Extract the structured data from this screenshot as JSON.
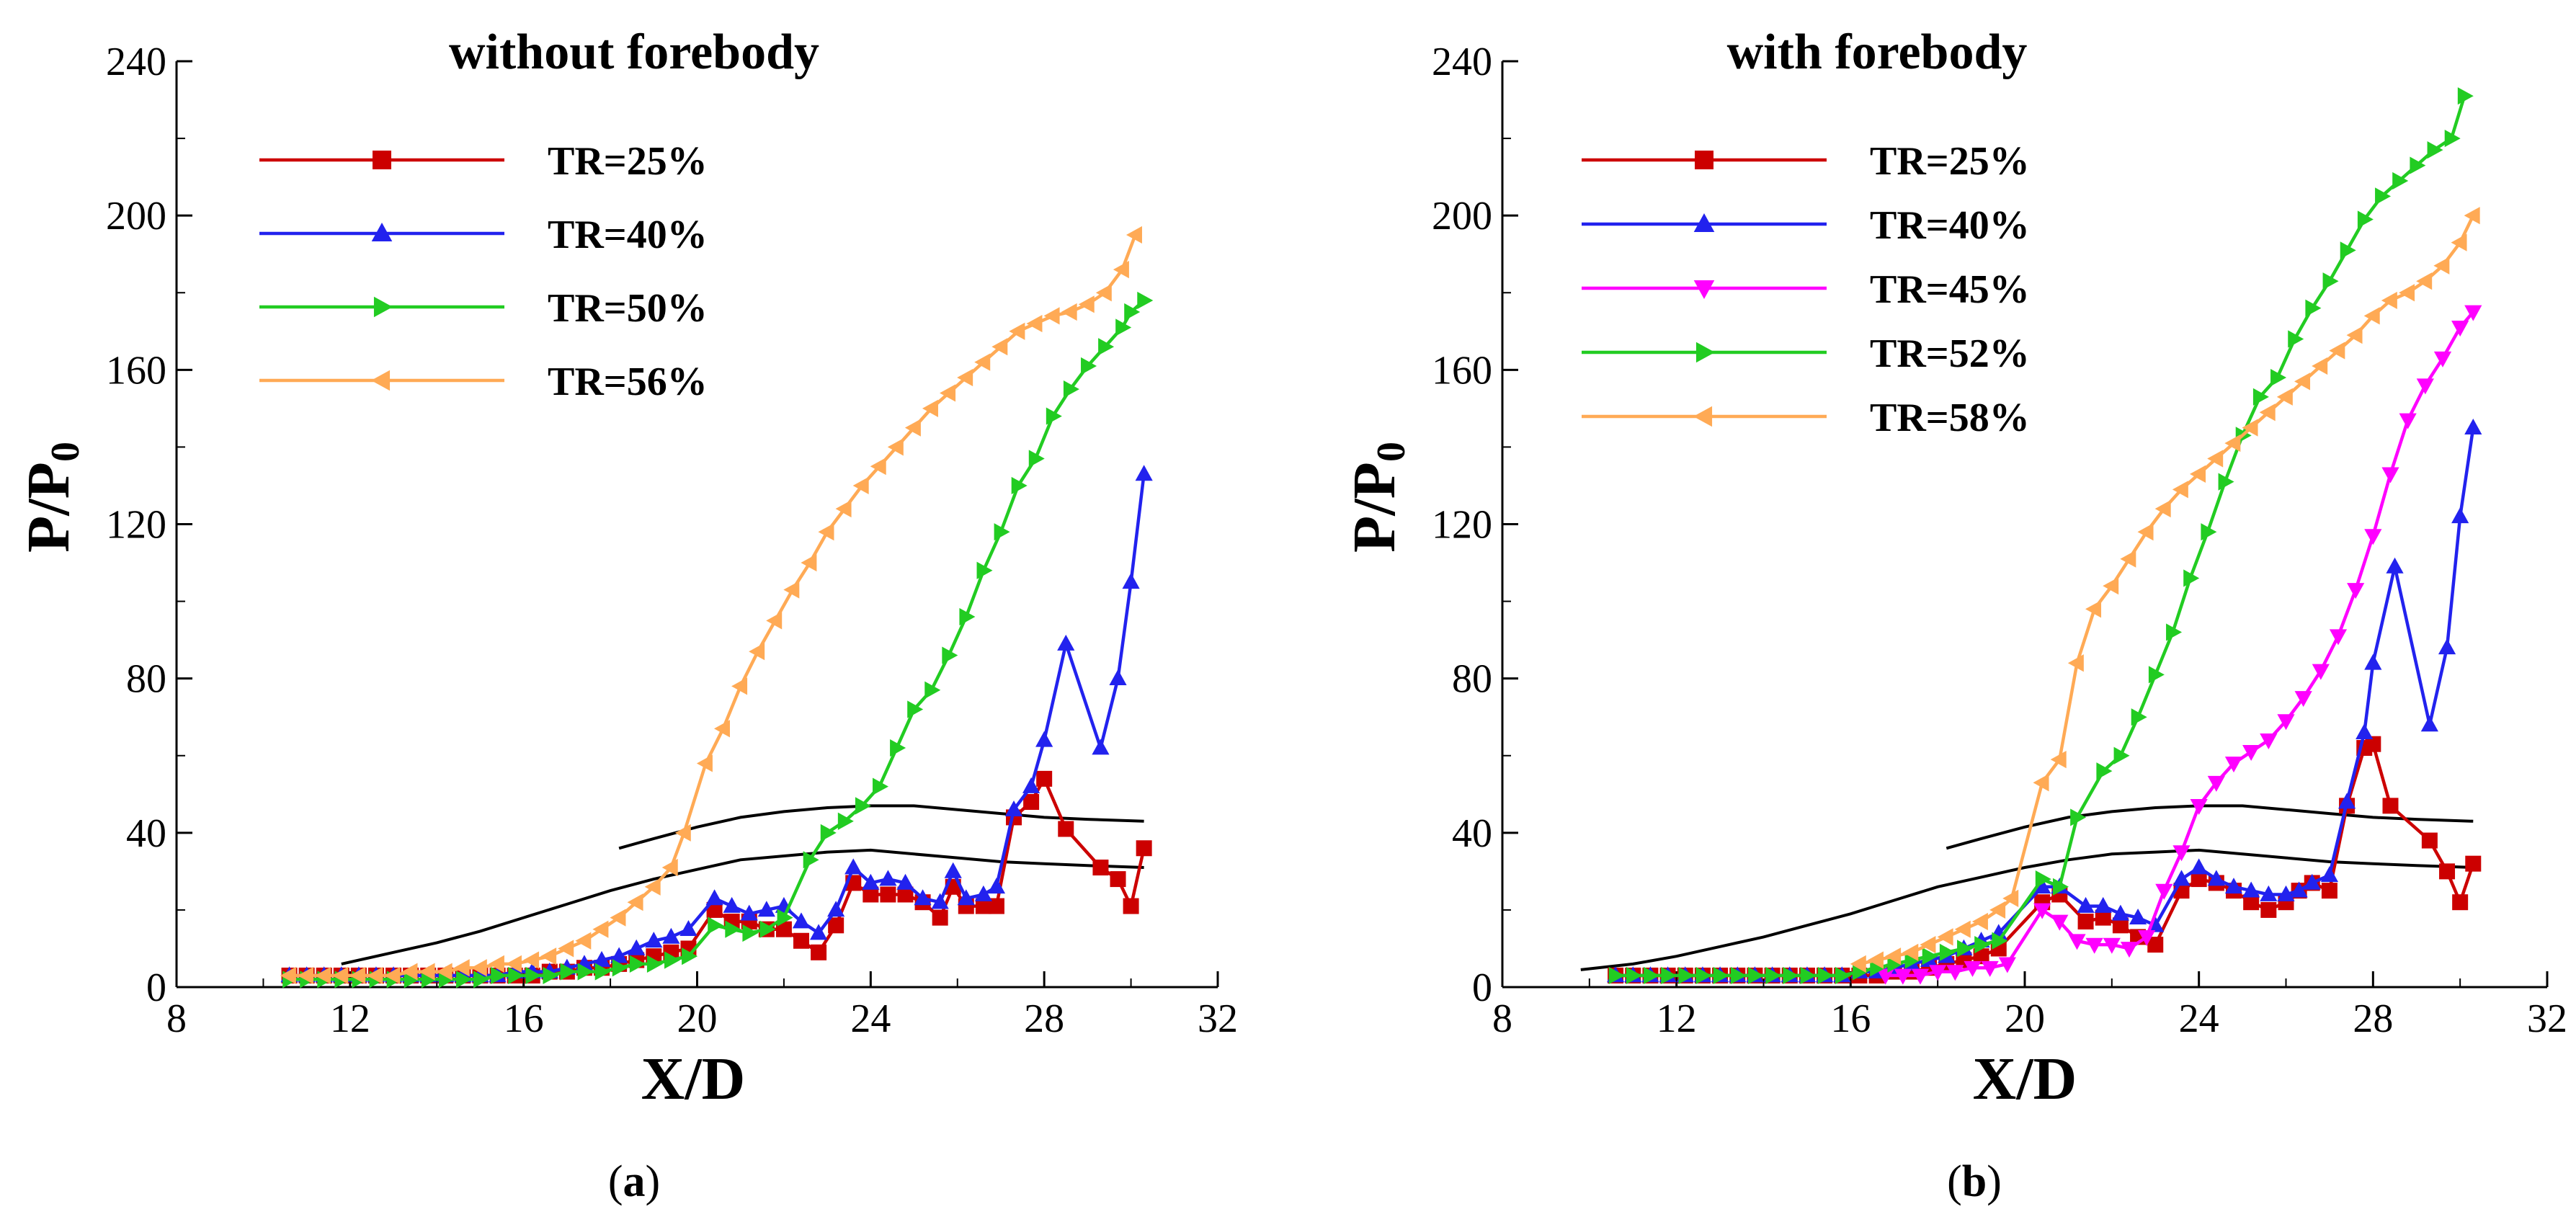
{
  "chart_data": [
    {
      "type": "line",
      "panel": "(a)",
      "caption_label": "a",
      "title": "without forebody",
      "xlabel": "X/D",
      "ylabel": "P/P",
      "ylabel_sub": "0",
      "xlim": [
        8,
        32
      ],
      "ylim": [
        0,
        240
      ],
      "xticks": [
        8,
        12,
        16,
        20,
        24,
        28,
        32
      ],
      "yticks": [
        0,
        40,
        80,
        120,
        160,
        200,
        240
      ],
      "legend_position": "top-left",
      "series": [
        {
          "name": "TR=25%",
          "color": "#cc0000",
          "marker": "square",
          "x": [
            10.6,
            11.0,
            11.4,
            11.8,
            12.2,
            12.6,
            13.0,
            13.4,
            13.8,
            14.2,
            14.6,
            15.0,
            15.4,
            15.8,
            16.2,
            16.6,
            17.0,
            17.4,
            17.8,
            18.2,
            18.6,
            19.0,
            19.4,
            19.8,
            20.4,
            20.8,
            21.2,
            21.6,
            22.0,
            22.4,
            22.8,
            23.2,
            23.6,
            24.0,
            24.4,
            24.8,
            25.2,
            25.6,
            25.9,
            26.2,
            26.6,
            26.9,
            27.3,
            27.7,
            28.0,
            28.5,
            29.3,
            29.7,
            30.0,
            30.3
          ],
          "y": [
            3,
            3,
            3,
            3,
            3,
            3,
            3,
            3,
            3,
            3,
            3,
            3,
            3,
            3,
            3,
            4,
            4,
            5,
            5,
            6,
            7,
            8,
            9,
            10,
            20,
            17,
            17,
            15,
            15,
            12,
            9,
            16,
            27,
            24,
            24,
            24,
            22,
            18,
            26,
            21,
            21,
            21,
            44,
            48,
            54,
            41,
            31,
            28,
            21,
            36
          ]
        },
        {
          "name": "TR=40%",
          "color": "#2222ee",
          "marker": "triangle-up",
          "x": [
            10.6,
            11.0,
            11.4,
            11.8,
            12.2,
            12.6,
            13.0,
            13.4,
            13.8,
            14.2,
            14.6,
            15.0,
            15.4,
            15.8,
            16.2,
            16.6,
            17.0,
            17.4,
            17.8,
            18.2,
            18.6,
            19.0,
            19.4,
            19.8,
            20.4,
            20.8,
            21.2,
            21.6,
            22.0,
            22.4,
            22.8,
            23.2,
            23.6,
            24.0,
            24.4,
            24.8,
            25.2,
            25.6,
            25.9,
            26.2,
            26.6,
            26.9,
            27.3,
            27.7,
            28.0,
            28.5,
            29.3,
            29.7,
            30.0,
            30.3
          ],
          "y": [
            3,
            3,
            3,
            3,
            3,
            3,
            3,
            3,
            3,
            3,
            3,
            3,
            3,
            4,
            4,
            4,
            5,
            6,
            7,
            8,
            10,
            12,
            13,
            15,
            23,
            21,
            19,
            20,
            21,
            17,
            14,
            20,
            31,
            27,
            28,
            27,
            23,
            22,
            30,
            23,
            24,
            26,
            46,
            52,
            64,
            89,
            62,
            80,
            105,
            133
          ]
        },
        {
          "name": "TR=50%",
          "color": "#22cc22",
          "marker": "triangle-right",
          "x": [
            10.6,
            11.0,
            11.4,
            11.8,
            12.2,
            12.6,
            13.0,
            13.4,
            13.8,
            14.2,
            14.6,
            15.0,
            15.4,
            15.8,
            16.2,
            16.6,
            17.0,
            17.4,
            17.8,
            18.2,
            18.6,
            19.0,
            19.4,
            19.8,
            20.4,
            20.8,
            21.2,
            21.6,
            22.0,
            22.6,
            23.0,
            23.4,
            23.8,
            24.2,
            24.6,
            25.0,
            25.4,
            25.8,
            26.2,
            26.6,
            27.0,
            27.4,
            27.8,
            28.2,
            28.6,
            29.0,
            29.4,
            29.8,
            30.0,
            30.3
          ],
          "y": [
            2,
            2,
            2,
            2,
            2,
            2,
            2,
            2,
            2,
            2,
            2,
            2,
            3,
            3,
            3,
            3,
            4,
            4,
            4,
            5,
            6,
            6,
            7,
            8,
            16,
            15,
            14,
            15,
            18,
            33,
            40,
            43,
            47,
            52,
            62,
            72,
            77,
            86,
            96,
            108,
            118,
            130,
            137,
            148,
            155,
            161,
            166,
            171,
            175,
            178
          ]
        },
        {
          "name": "TR=56%",
          "color": "#ffaa55",
          "marker": "triangle-left",
          "x": [
            10.6,
            11.0,
            11.4,
            11.8,
            12.2,
            12.6,
            13.0,
            13.4,
            13.8,
            14.2,
            14.6,
            15.0,
            15.4,
            15.8,
            16.2,
            16.6,
            17.0,
            17.4,
            17.8,
            18.2,
            18.6,
            19.0,
            19.4,
            19.7,
            20.2,
            20.6,
            21.0,
            21.4,
            21.8,
            22.2,
            22.6,
            23.0,
            23.4,
            23.8,
            24.2,
            24.6,
            25.0,
            25.4,
            25.8,
            26.2,
            26.6,
            27.0,
            27.4,
            27.8,
            28.2,
            28.6,
            29.0,
            29.4,
            29.8,
            30.1
          ],
          "y": [
            3,
            3,
            3,
            3,
            3,
            3,
            3,
            4,
            4,
            4,
            5,
            5,
            6,
            6,
            7,
            8,
            10,
            12,
            15,
            18,
            22,
            26,
            31,
            40,
            58,
            67,
            78,
            87,
            95,
            103,
            110,
            118,
            124,
            130,
            135,
            140,
            145,
            150,
            154,
            158,
            162,
            166,
            170,
            172,
            174,
            175,
            177,
            180,
            186,
            195
          ]
        }
      ],
      "contours": [
        {
          "x": [
            11.8,
            13,
            14,
            15,
            16,
            17,
            18,
            19,
            20,
            21,
            22,
            23,
            24,
            25,
            26,
            27,
            28,
            29,
            30.3
          ],
          "y": [
            6,
            9,
            11.5,
            14.5,
            18,
            21.5,
            25,
            28,
            30.5,
            33,
            34,
            35,
            35.5,
            34.5,
            33.5,
            32.5,
            32,
            31.5,
            31
          ]
        },
        {
          "x": [
            18.2,
            19,
            20,
            21,
            22,
            23,
            24,
            25,
            26,
            27,
            28,
            29,
            30.3
          ],
          "y": [
            36,
            38.5,
            41.5,
            44,
            45.5,
            46.5,
            47,
            47,
            46,
            45,
            44,
            43.5,
            43
          ]
        }
      ]
    },
    {
      "type": "line",
      "panel": "(b)",
      "caption_label": "b",
      "title": "with forebody",
      "xlabel": "X/D",
      "ylabel": "P/P",
      "ylabel_sub": "0",
      "xlim": [
        8,
        32
      ],
      "ylim": [
        0,
        240
      ],
      "xticks": [
        8,
        12,
        16,
        20,
        24,
        28,
        32
      ],
      "yticks": [
        0,
        40,
        80,
        120,
        160,
        200,
        240
      ],
      "legend_position": "top-left",
      "series": [
        {
          "name": "TR=25%",
          "color": "#cc0000",
          "marker": "square",
          "x": [
            10.6,
            11.0,
            11.4,
            11.8,
            12.2,
            12.6,
            13.0,
            13.4,
            13.8,
            14.2,
            14.6,
            15.0,
            15.4,
            15.8,
            16.2,
            16.6,
            17.0,
            17.4,
            17.8,
            18.2,
            18.6,
            19.0,
            19.4,
            20.4,
            20.8,
            21.4,
            21.8,
            22.2,
            22.6,
            23.0,
            23.6,
            24.0,
            24.4,
            24.8,
            25.2,
            25.6,
            26.0,
            26.3,
            26.6,
            27.0,
            27.4,
            27.8,
            28.0,
            28.4,
            29.3,
            29.7,
            30.0,
            30.3
          ],
          "y": [
            3,
            3,
            3,
            3,
            3,
            3,
            3,
            3,
            3,
            3,
            3,
            3,
            3,
            3,
            3,
            3,
            4,
            4,
            5,
            6,
            7,
            8,
            10,
            22,
            24,
            17,
            18,
            16,
            13,
            11,
            25,
            28,
            27,
            25,
            22,
            20,
            22,
            25,
            27,
            25,
            47,
            62,
            63,
            47,
            38,
            30,
            22,
            32
          ]
        },
        {
          "name": "TR=40%",
          "color": "#2222ee",
          "marker": "triangle-up",
          "x": [
            10.6,
            11.0,
            11.4,
            11.8,
            12.2,
            12.6,
            13.0,
            13.4,
            13.8,
            14.2,
            14.6,
            15.0,
            15.4,
            15.8,
            16.2,
            16.6,
            17.0,
            17.4,
            17.8,
            18.2,
            18.6,
            19.0,
            19.4,
            20.4,
            20.8,
            21.4,
            21.8,
            22.2,
            22.6,
            23.0,
            23.6,
            24.0,
            24.4,
            24.8,
            25.2,
            25.6,
            26.0,
            26.3,
            26.6,
            27.0,
            27.4,
            27.8,
            28.0,
            28.5,
            29.3,
            29.7,
            30.0,
            30.3
          ],
          "y": [
            3,
            3,
            3,
            3,
            3,
            3,
            3,
            3,
            3,
            3,
            3,
            3,
            3,
            3,
            4,
            4,
            5,
            6,
            7,
            8,
            10,
            12,
            14,
            26,
            26,
            21,
            21,
            19,
            18,
            16,
            28,
            31,
            28,
            26,
            25,
            24,
            24,
            25,
            27,
            29,
            48,
            66,
            84,
            109,
            68,
            88,
            122,
            145
          ]
        },
        {
          "name": "TR=45%",
          "color": "#ff00ff",
          "marker": "triangle-down",
          "x": [
            16.8,
            17.2,
            17.6,
            18.0,
            18.4,
            18.8,
            19.2,
            19.6,
            20.4,
            20.8,
            21.2,
            21.6,
            22.0,
            22.4,
            22.8,
            23.2,
            23.6,
            24.0,
            24.4,
            24.8,
            25.2,
            25.6,
            26.0,
            26.4,
            26.8,
            27.2,
            27.6,
            28.0,
            28.4,
            28.8,
            29.2,
            29.6,
            30.0,
            30.3
          ],
          "y": [
            3,
            3,
            3,
            4,
            4,
            5,
            5,
            6,
            20,
            17,
            12,
            11,
            11,
            10,
            13,
            25,
            35,
            47,
            53,
            58,
            61,
            64,
            69,
            75,
            82,
            91,
            103,
            117,
            133,
            147,
            156,
            163,
            171,
            175
          ]
        },
        {
          "name": "TR=52%",
          "color": "#22cc22",
          "marker": "triangle-right",
          "x": [
            10.6,
            11.0,
            11.4,
            11.8,
            12.2,
            12.6,
            13.0,
            13.4,
            13.8,
            14.2,
            14.6,
            15.0,
            15.4,
            15.8,
            16.2,
            16.6,
            17.0,
            17.4,
            17.8,
            18.2,
            18.6,
            19.0,
            19.4,
            20.4,
            20.8,
            21.2,
            21.8,
            22.2,
            22.6,
            23.0,
            23.4,
            23.8,
            24.2,
            24.6,
            25.0,
            25.4,
            25.8,
            26.2,
            26.6,
            27.0,
            27.4,
            27.8,
            28.2,
            28.6,
            29.0,
            29.4,
            29.8,
            30.1
          ],
          "y": [
            3,
            3,
            3,
            3,
            3,
            3,
            3,
            3,
            3,
            3,
            3,
            3,
            3,
            3,
            4,
            5,
            6,
            7,
            8,
            9,
            10,
            11,
            12,
            28,
            26,
            44,
            56,
            60,
            70,
            81,
            92,
            106,
            118,
            131,
            143,
            153,
            158,
            168,
            176,
            183,
            191,
            199,
            205,
            209,
            213,
            217,
            220,
            231
          ]
        },
        {
          "name": "TR=58%",
          "color": "#ffaa55",
          "marker": "triangle-left",
          "x": [
            16.2,
            16.6,
            17.0,
            17.4,
            17.8,
            18.2,
            18.6,
            19.0,
            19.4,
            19.7,
            20.4,
            20.8,
            21.2,
            21.6,
            22.0,
            22.4,
            22.8,
            23.2,
            23.6,
            24.0,
            24.4,
            24.8,
            25.2,
            25.6,
            26.0,
            26.4,
            26.8,
            27.2,
            27.6,
            28.0,
            28.4,
            28.8,
            29.2,
            29.6,
            30.0,
            30.3
          ],
          "y": [
            6,
            7,
            8,
            9,
            11,
            13,
            15,
            17,
            20,
            23,
            53,
            59,
            84,
            98,
            104,
            111,
            118,
            124,
            129,
            133,
            137,
            141,
            145,
            149,
            153,
            157,
            161,
            165,
            169,
            174,
            178,
            180,
            183,
            187,
            193,
            200
          ]
        }
      ],
      "contours": [
        {
          "x": [
            9.8,
            11,
            12,
            13,
            14,
            15,
            16,
            17,
            18,
            19,
            20,
            21,
            22,
            23,
            24,
            25,
            26,
            27,
            28,
            29,
            30.3
          ],
          "y": [
            4.5,
            6,
            8,
            10.5,
            13,
            16,
            19,
            22.5,
            26,
            28.5,
            31,
            33,
            34.5,
            35,
            35.5,
            34.5,
            33.5,
            32.5,
            32,
            31.5,
            31
          ]
        },
        {
          "x": [
            18.2,
            19,
            20,
            21,
            22,
            23,
            24,
            25,
            26,
            27,
            28,
            29,
            30.3
          ],
          "y": [
            36,
            38.5,
            41.5,
            44,
            45.5,
            46.5,
            47,
            47,
            46,
            45,
            44,
            43.5,
            43
          ]
        }
      ]
    }
  ]
}
